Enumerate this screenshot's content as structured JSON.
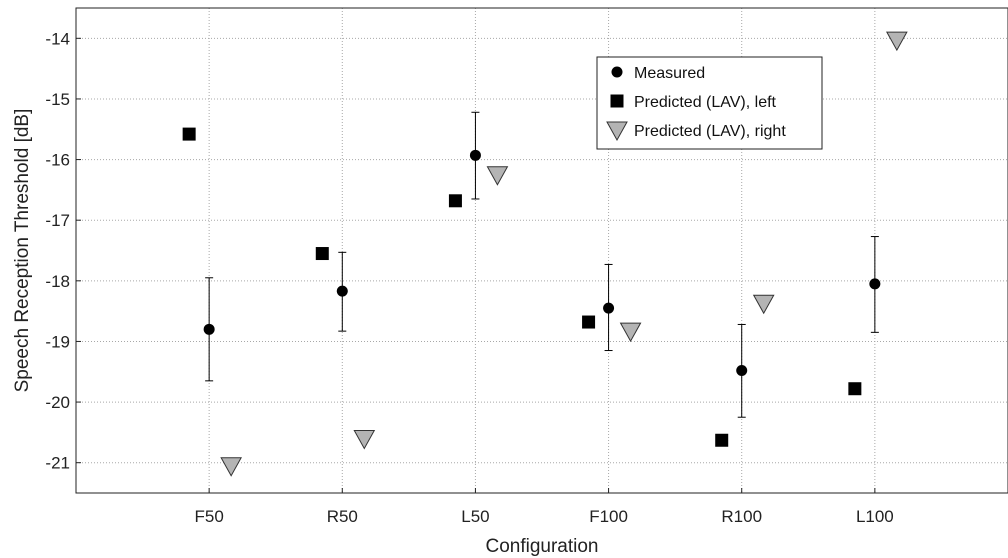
{
  "chart_data": {
    "type": "scatter",
    "title": "",
    "xlabel": "Configuration",
    "ylabel": "Speech Reception Threshold [dB]",
    "categories": [
      "F50",
      "R50",
      "L50",
      "F100",
      "R100",
      "L100"
    ],
    "ylim": [
      -21.5,
      -13.5
    ],
    "yticks": [
      -14,
      -15,
      -16,
      -17,
      -18,
      -19,
      -20,
      -21
    ],
    "ytick_labels": [
      "-14",
      "-15",
      "-16",
      "-17",
      "-18",
      "-19",
      "-20",
      "-21"
    ],
    "grid": true,
    "legend_position": "top-center",
    "series": [
      {
        "name": "Measured",
        "marker": "circle",
        "color": "#000000",
        "values": [
          -18.8,
          -18.17,
          -15.93,
          -18.45,
          -19.48,
          -18.05
        ],
        "error_low": [
          -19.65,
          -18.83,
          -16.65,
          -19.15,
          -20.25,
          -18.85
        ],
        "error_high": [
          -17.95,
          -17.53,
          -15.22,
          -17.73,
          -18.72,
          -17.27
        ]
      },
      {
        "name": "Predicted (LAV), left",
        "marker": "square",
        "color": "#000000",
        "values": [
          -15.58,
          -17.55,
          -16.68,
          -18.68,
          -20.63,
          -19.78
        ]
      },
      {
        "name": "Predicted (LAV), right",
        "marker": "triangle-down",
        "color": "#b4b4b4",
        "values": [
          -21.05,
          -20.6,
          -16.25,
          -18.83,
          -18.37,
          -14.03
        ]
      }
    ]
  }
}
